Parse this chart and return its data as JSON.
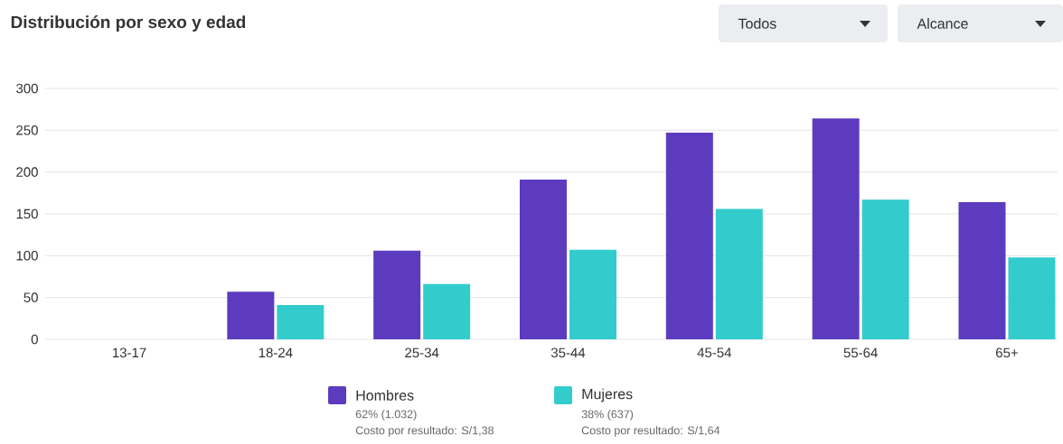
{
  "chart_data": {
    "type": "bar",
    "title": "Distribución por sexo y edad",
    "categories": [
      "13-17",
      "18-24",
      "25-34",
      "35-44",
      "45-54",
      "55-64",
      "65+"
    ],
    "series": [
      {
        "name": "Hombres",
        "color": "#5c3bbf",
        "values": [
          0,
          57,
          106,
          191,
          247,
          264,
          164
        ]
      },
      {
        "name": "Mujeres",
        "color": "#33cccc",
        "values": [
          0,
          41,
          66,
          107,
          156,
          167,
          98
        ]
      }
    ],
    "ylim": [
      0,
      300
    ],
    "yticks": [
      0,
      50,
      100,
      150,
      200,
      250,
      300
    ],
    "grid": "y",
    "legend": "bottom",
    "annotations": [
      "Todos",
      "Alcance",
      "62% (1.032)",
      "Costo por resultado: S/1,38",
      "38% (637)",
      "Costo por resultado: S/1,64"
    ]
  }
}
